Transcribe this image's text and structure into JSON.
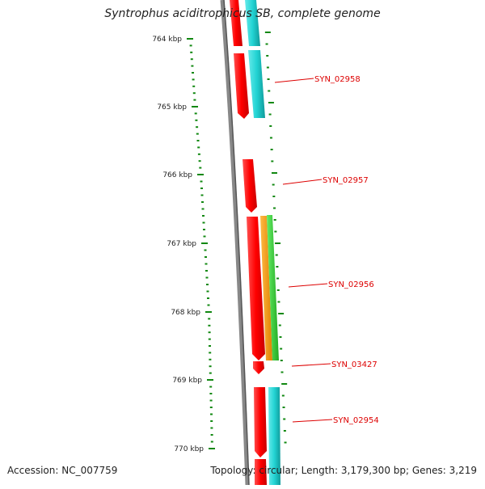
{
  "title": "Syntrophus aciditrophicus SB, complete genome",
  "footer": {
    "accession": "Accession: NC_007759",
    "summary": "Topology: circular; Length: 3,179,300 bp; Genes: 3,219"
  },
  "ruler_labels": [
    "764 kbp",
    "765 kbp",
    "766 kbp",
    "767 kbp",
    "768 kbp",
    "769 kbp",
    "770 kbp"
  ],
  "gene_labels": [
    "SYN_02958",
    "SYN_02957",
    "SYN_02956",
    "SYN_03427",
    "SYN_02954"
  ],
  "colors": {
    "red": "#ff0000",
    "cyan": "#22d3d3",
    "orange": "#ff9900",
    "green": "#33cc33",
    "backbone": "#777777",
    "tick": "#118811",
    "label": "#dd0000"
  }
}
